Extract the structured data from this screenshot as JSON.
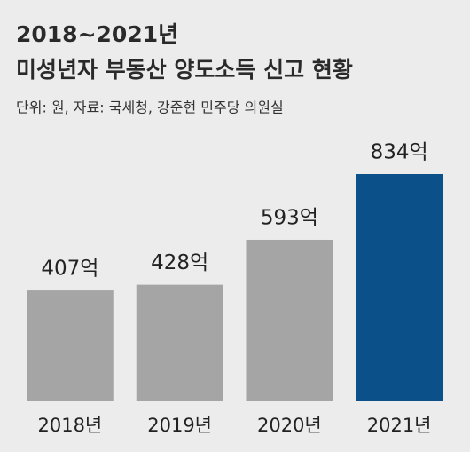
{
  "chart_data": {
    "type": "bar",
    "title": "2018~2021년",
    "subtitle": "미성년자 부동산 양도소득 신고 현황",
    "source": "단위: 원, 자료: 국세청, 강준현 민주당 의원실",
    "categories": [
      "2018년",
      "2019년",
      "2020년",
      "2021년"
    ],
    "values": [
      407,
      428,
      593,
      834
    ],
    "value_labels": [
      "407억",
      "428억",
      "593억",
      "834억"
    ],
    "colors": [
      "#a5a5a5",
      "#a5a5a5",
      "#a5a5a5",
      "#0b5088"
    ]
  }
}
